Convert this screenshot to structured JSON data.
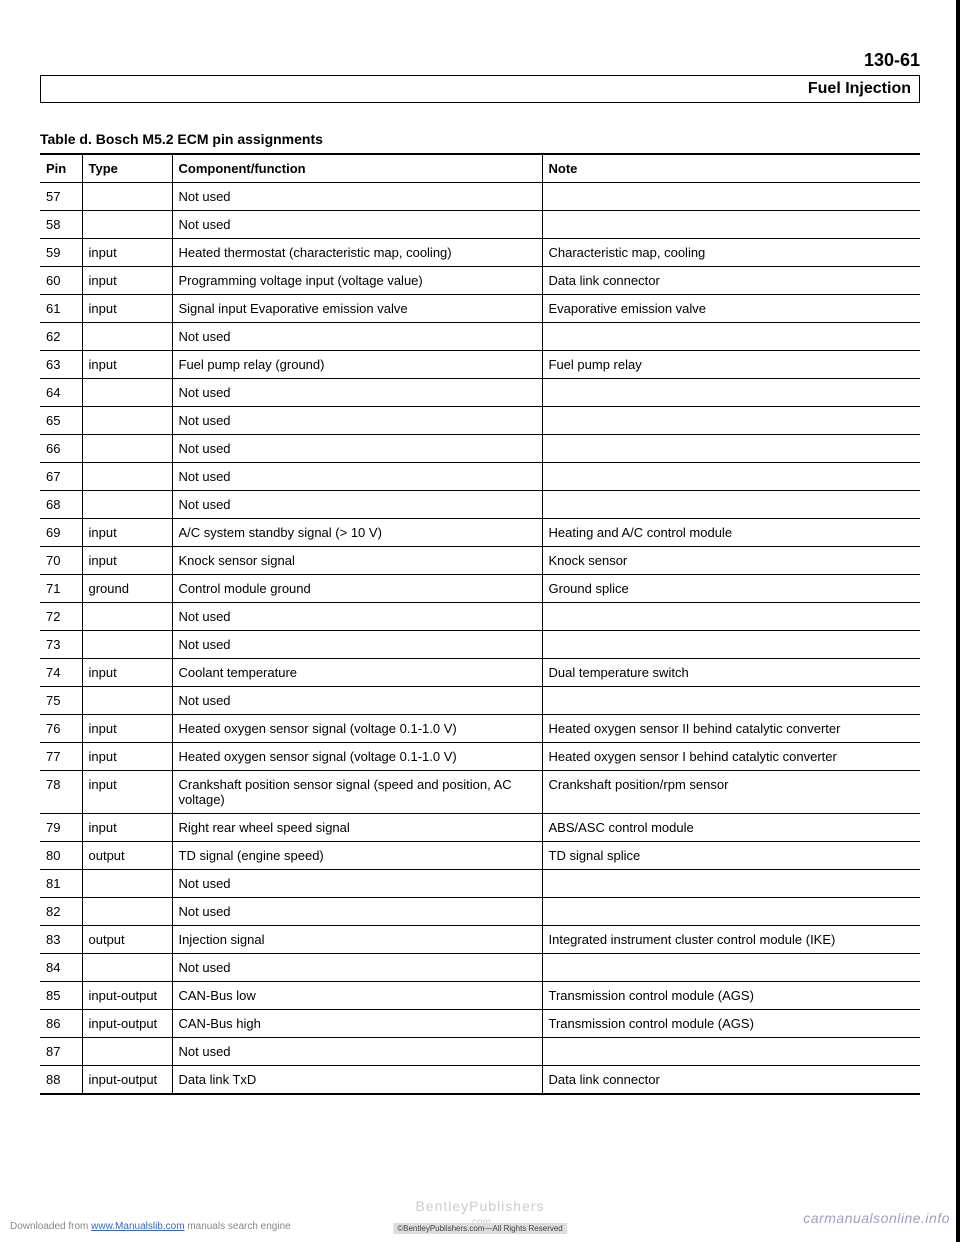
{
  "page_number": "130-61",
  "section_title": "Fuel Injection",
  "table_caption": "Table d. Bosch M5.2 ECM pin assignments",
  "columns": [
    "Pin",
    "Type",
    "Component/function",
    "Note"
  ],
  "rows": [
    {
      "pin": "57",
      "type": "",
      "comp": "Not used",
      "note": ""
    },
    {
      "pin": "58",
      "type": "",
      "comp": "Not used",
      "note": ""
    },
    {
      "pin": "59",
      "type": "input",
      "comp": "Heated thermostat (characteristic map, cooling)",
      "note": "Characteristic map, cooling"
    },
    {
      "pin": "60",
      "type": "input",
      "comp": "Programming voltage input (voltage value)",
      "note": "Data link connector"
    },
    {
      "pin": "61",
      "type": "input",
      "comp": "Signal input Evaporative emission valve",
      "note": "Evaporative emission valve"
    },
    {
      "pin": "62",
      "type": "",
      "comp": "Not used",
      "note": ""
    },
    {
      "pin": "63",
      "type": "input",
      "comp": "Fuel pump relay (ground)",
      "note": "Fuel pump relay"
    },
    {
      "pin": "64",
      "type": "",
      "comp": "Not used",
      "note": ""
    },
    {
      "pin": "65",
      "type": "",
      "comp": "Not used",
      "note": ""
    },
    {
      "pin": "66",
      "type": "",
      "comp": "Not used",
      "note": ""
    },
    {
      "pin": "67",
      "type": "",
      "comp": "Not used",
      "note": ""
    },
    {
      "pin": "68",
      "type": "",
      "comp": "Not used",
      "note": ""
    },
    {
      "pin": "69",
      "type": "input",
      "comp": "A/C system standby signal (> 10 V)",
      "note": "Heating and A/C control module"
    },
    {
      "pin": "70",
      "type": "input",
      "comp": "Knock sensor signal",
      "note": "Knock sensor"
    },
    {
      "pin": "71",
      "type": "ground",
      "comp": "Control module ground",
      "note": "Ground splice"
    },
    {
      "pin": "72",
      "type": "",
      "comp": "Not used",
      "note": ""
    },
    {
      "pin": "73",
      "type": "",
      "comp": "Not used",
      "note": ""
    },
    {
      "pin": "74",
      "type": "input",
      "comp": "Coolant temperature",
      "note": "Dual temperature switch"
    },
    {
      "pin": "75",
      "type": "",
      "comp": "Not used",
      "note": ""
    },
    {
      "pin": "76",
      "type": "input",
      "comp": "Heated oxygen sensor signal (voltage 0.1-1.0 V)",
      "note": "Heated oxygen sensor II behind catalytic converter"
    },
    {
      "pin": "77",
      "type": "input",
      "comp": "Heated oxygen sensor signal (voltage 0.1-1.0 V)",
      "note": "Heated oxygen sensor I behind catalytic converter"
    },
    {
      "pin": "78",
      "type": "input",
      "comp": "Crankshaft position sensor signal (speed and position, AC voltage)",
      "note": "Crankshaft position/rpm sensor"
    },
    {
      "pin": "79",
      "type": "input",
      "comp": "Right rear wheel speed signal",
      "note": "ABS/ASC control module"
    },
    {
      "pin": "80",
      "type": "output",
      "comp": "TD signal (engine speed)",
      "note": "TD signal splice"
    },
    {
      "pin": "81",
      "type": "",
      "comp": "Not used",
      "note": ""
    },
    {
      "pin": "82",
      "type": "",
      "comp": "Not used",
      "note": ""
    },
    {
      "pin": "83",
      "type": "output",
      "comp": "Injection signal",
      "note": "Integrated instrument cluster control module (IKE)"
    },
    {
      "pin": "84",
      "type": "",
      "comp": "Not used",
      "note": ""
    },
    {
      "pin": "85",
      "type": "input-output",
      "comp": "CAN-Bus low",
      "note": "Transmission control module (AGS)"
    },
    {
      "pin": "86",
      "type": "input-output",
      "comp": "CAN-Bus high",
      "note": "Transmission control module (AGS)"
    },
    {
      "pin": "87",
      "type": "",
      "comp": "Not used",
      "note": ""
    },
    {
      "pin": "88",
      "type": "input-output",
      "comp": "Data link TxD",
      "note": "Data link connector"
    }
  ],
  "footer": {
    "left_prefix": "Downloaded from ",
    "left_link": "www.Manualslib.com",
    "left_suffix": " manuals search engine",
    "center": "BentleyPublishers",
    "center_sub": ".com",
    "watermark": "©BentleyPublishers.com—All Rights Reserved",
    "right": "carmanualsonline.info"
  }
}
